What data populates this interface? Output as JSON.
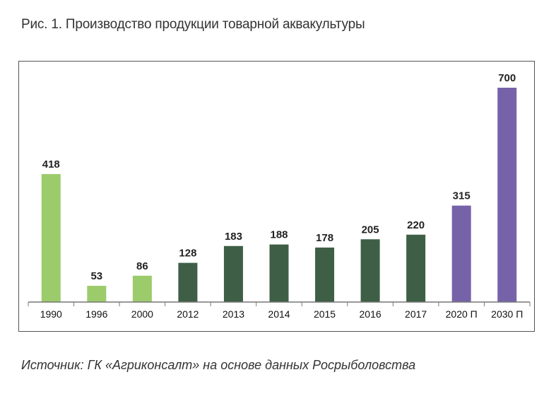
{
  "figure": {
    "title": "Рис. 1. Производство продукции товарной аквакультуры",
    "source": "Источник: ГК «Агриконсалт» на основе данных Росрыболовства"
  },
  "colors": {
    "light_green": "#9ccb6b",
    "dark_green": "#3e5f45",
    "purple": "#7662a9"
  },
  "chart_data": {
    "type": "bar",
    "categories": [
      "1990",
      "1996",
      "2000",
      "2012",
      "2013",
      "2014",
      "2015",
      "2016",
      "2017",
      "2020 П",
      "2030 П"
    ],
    "values": [
      418,
      53,
      86,
      128,
      183,
      188,
      178,
      205,
      220,
      315,
      700
    ],
    "bar_colors": [
      "#9ccb6b",
      "#9ccb6b",
      "#9ccb6b",
      "#3e5f45",
      "#3e5f45",
      "#3e5f45",
      "#3e5f45",
      "#3e5f45",
      "#3e5f45",
      "#7662a9",
      "#7662a9"
    ],
    "title": "",
    "xlabel": "",
    "ylabel": "",
    "ylim": [
      0,
      700
    ],
    "grid": false,
    "data_labels": true
  }
}
